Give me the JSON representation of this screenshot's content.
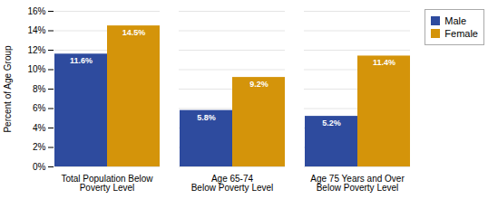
{
  "chart_data": {
    "type": "bar",
    "ylabel": "Percent of Age Group",
    "categories": [
      "Total Population Below\nPoverty Level",
      "Age 65-74\nBelow Poverty Level",
      "Age 75 Years and Over\nBelow Poverty Level"
    ],
    "series": [
      {
        "name": "Male",
        "color": "#2E4B9E",
        "values": [
          11.6,
          5.8,
          5.2
        ],
        "value_labels": [
          "11.6%",
          "5.8%",
          "5.2%"
        ]
      },
      {
        "name": "Female",
        "color": "#D4940A",
        "values": [
          14.5,
          9.2,
          11.4
        ],
        "value_labels": [
          "14.5%",
          "9.2%",
          "11.4%"
        ]
      }
    ],
    "ylim": [
      0,
      16
    ],
    "yticks": [
      {
        "value": 0,
        "label": "0%"
      },
      {
        "value": 2,
        "label": "2%"
      },
      {
        "value": 4,
        "label": "4%"
      },
      {
        "value": 6,
        "label": "6%"
      },
      {
        "value": 8,
        "label": "8%"
      },
      {
        "value": 10,
        "label": "10%"
      },
      {
        "value": 12,
        "label": "12%"
      },
      {
        "value": 14,
        "label": "14%"
      },
      {
        "value": 16,
        "label": "16%"
      }
    ],
    "grid": true,
    "legend": "upper right",
    "data_labels": true
  }
}
